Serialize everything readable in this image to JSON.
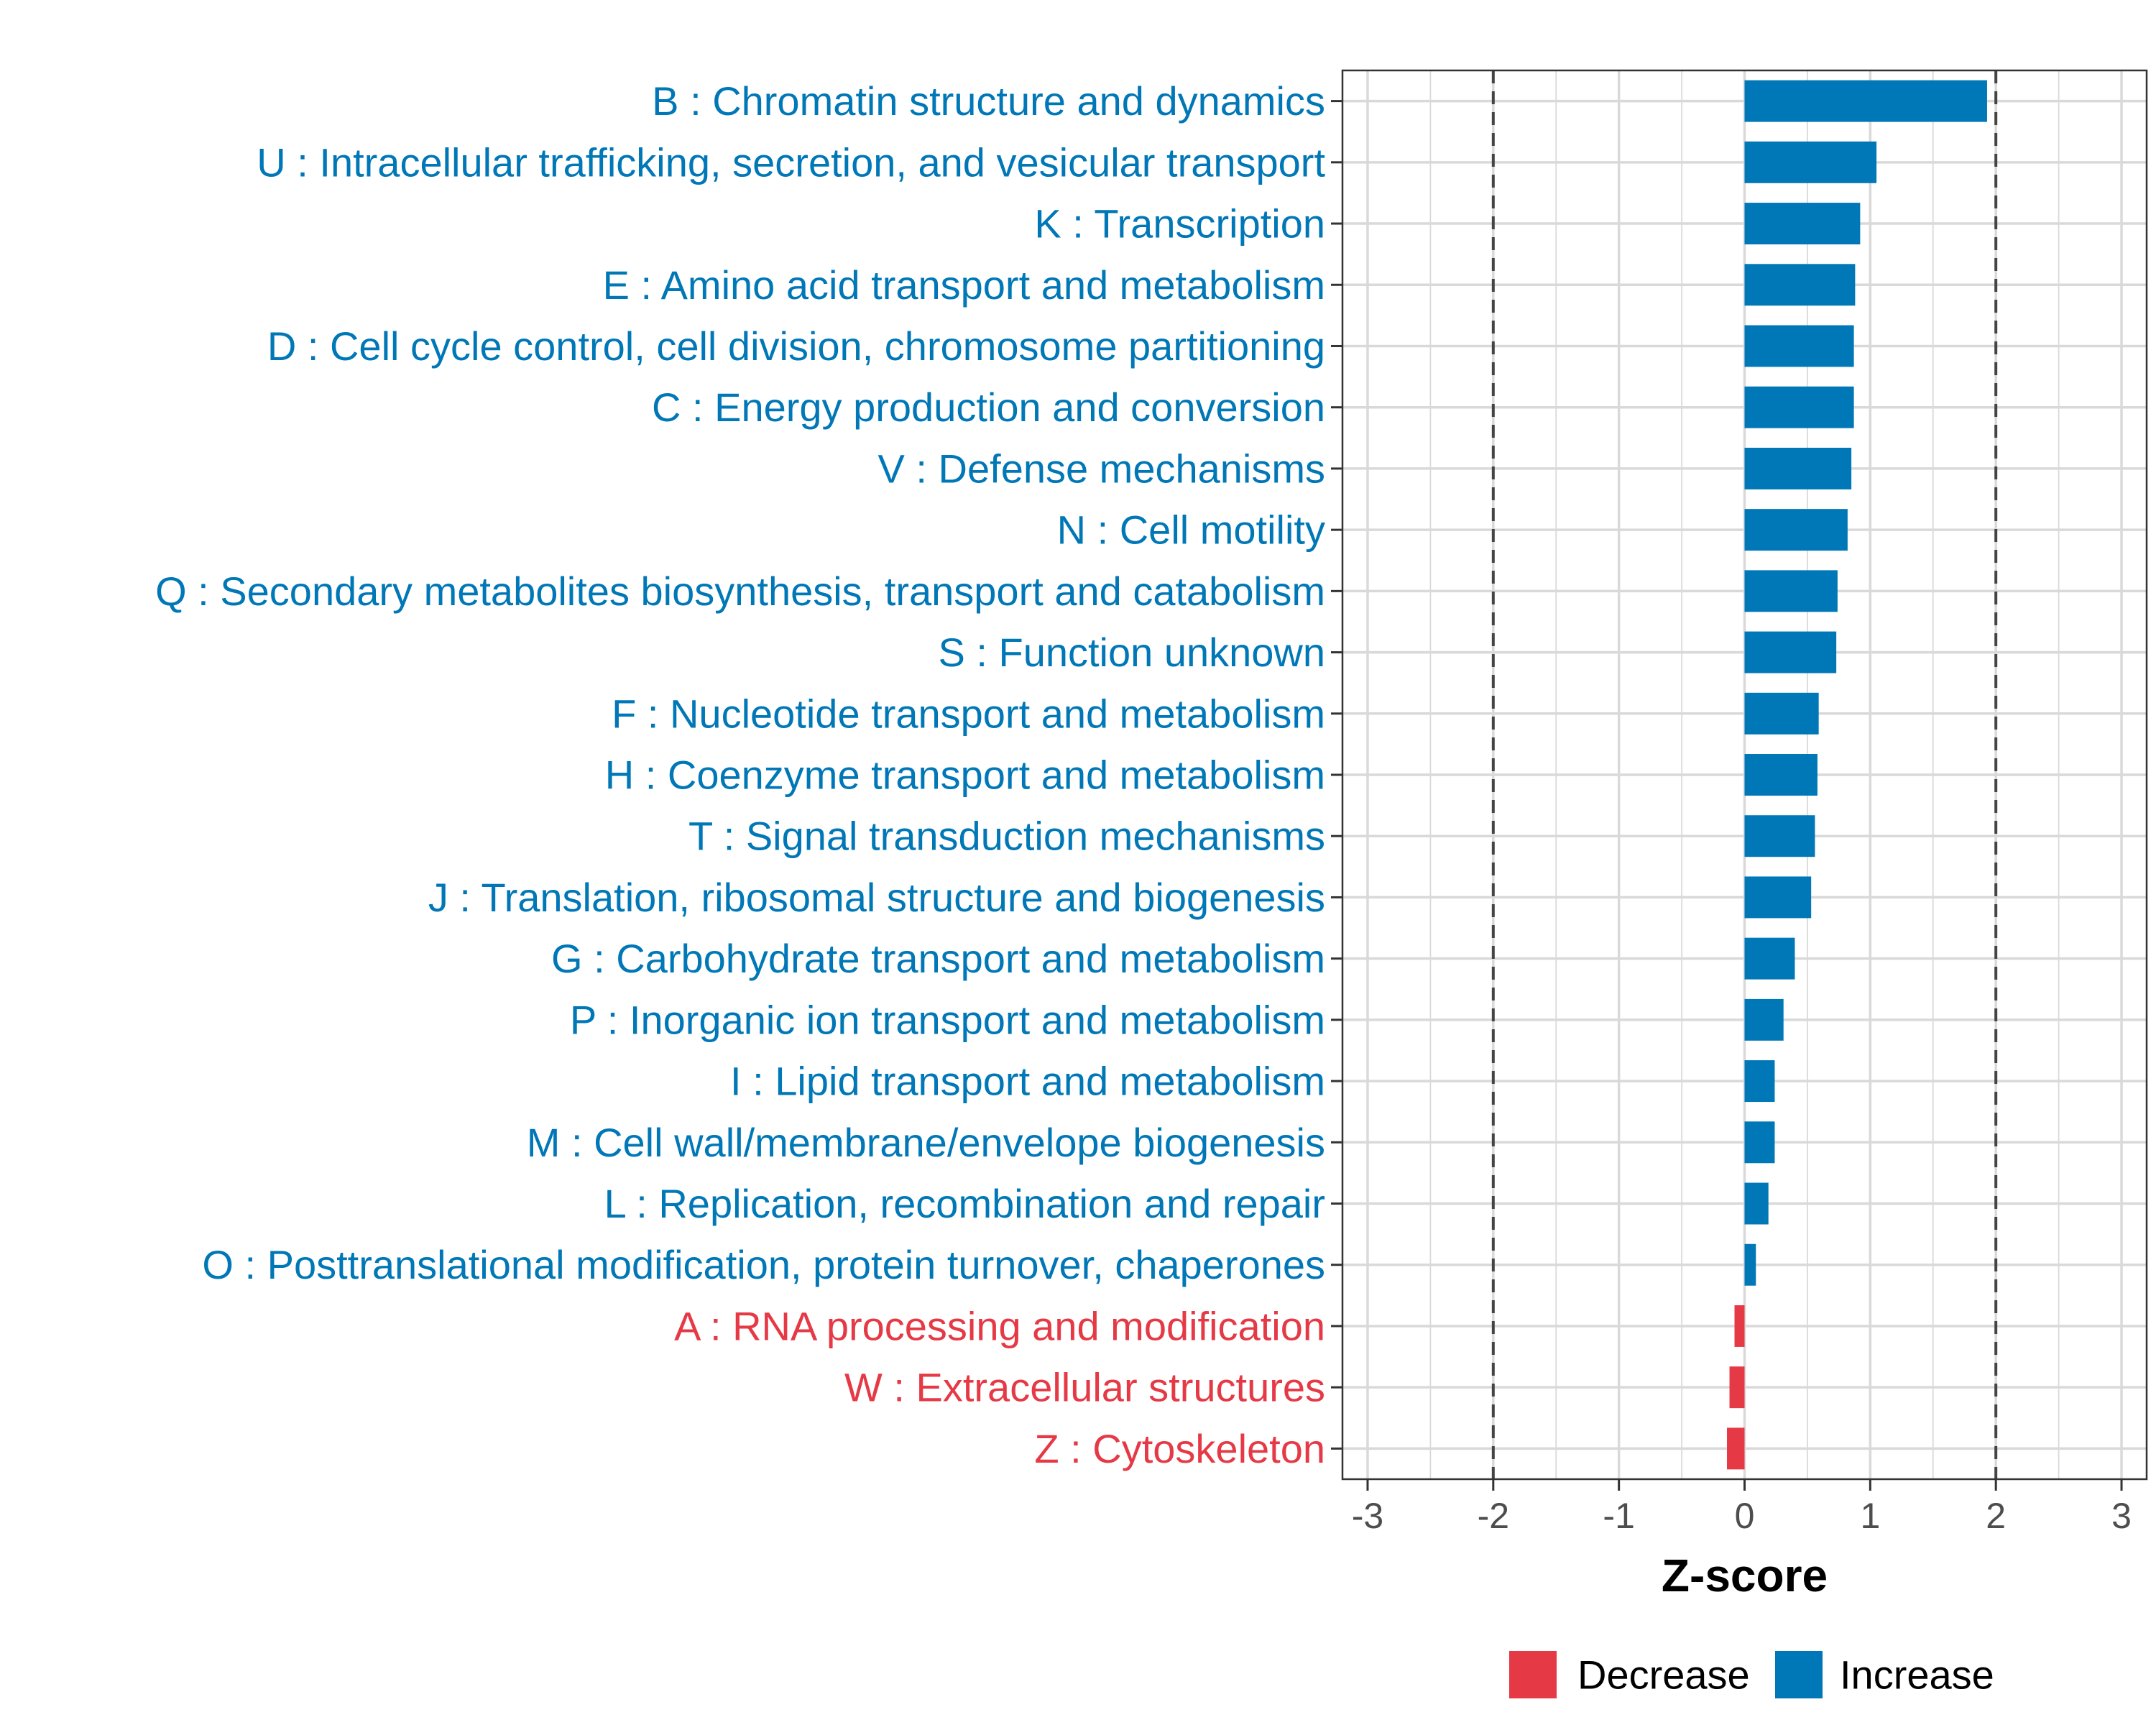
{
  "chart_data": {
    "type": "bar",
    "orientation": "horizontal",
    "xlabel": "Z-score",
    "ylabel": "",
    "xlim": [
      -3.2,
      3.2
    ],
    "x_ticks": [
      -3,
      -2,
      -1,
      0,
      1,
      2,
      3
    ],
    "x_tick_labels": [
      "-3",
      "-2",
      "-1",
      "0",
      "1",
      "2",
      "3"
    ],
    "reference_lines": [
      -2,
      2
    ],
    "grid": true,
    "legend_position": "bottom",
    "legend": [
      {
        "label": "Decrease",
        "color": "#E63946"
      },
      {
        "label": "Increase",
        "color": "#0077B6"
      }
    ],
    "categories": [
      "B : Chromatin structure and dynamics",
      "U : Intracellular trafficking, secretion, and vesicular transport",
      "K : Transcription",
      "E : Amino acid transport and metabolism",
      "D : Cell cycle control, cell division, chromosome partitioning",
      "C : Energy production and conversion",
      "V : Defense mechanisms",
      "N : Cell motility",
      "Q : Secondary metabolites biosynthesis, transport and catabolism",
      "S : Function unknown",
      "F : Nucleotide transport and metabolism",
      "H : Coenzyme transport and metabolism",
      "T : Signal transduction mechanisms",
      "J : Translation, ribosomal structure and biogenesis",
      "G : Carbohydrate transport and metabolism",
      "P : Inorganic ion transport and metabolism",
      "I : Lipid transport and metabolism",
      "M : Cell wall/membrane/envelope biogenesis",
      "L : Replication, recombination and repair",
      "O : Posttranslational modification, protein turnover, chaperones",
      "A : RNA processing and modification",
      "W : Extracellular structures",
      "Z : Cytoskeleton"
    ],
    "values": [
      1.93,
      1.05,
      0.92,
      0.88,
      0.87,
      0.87,
      0.85,
      0.82,
      0.74,
      0.73,
      0.59,
      0.58,
      0.56,
      0.53,
      0.4,
      0.31,
      0.24,
      0.24,
      0.19,
      0.09,
      -0.08,
      -0.12,
      -0.14
    ],
    "groups": [
      "Increase",
      "Increase",
      "Increase",
      "Increase",
      "Increase",
      "Increase",
      "Increase",
      "Increase",
      "Increase",
      "Increase",
      "Increase",
      "Increase",
      "Increase",
      "Increase",
      "Increase",
      "Increase",
      "Increase",
      "Increase",
      "Increase",
      "Increase",
      "Decrease",
      "Decrease",
      "Decrease"
    ]
  }
}
